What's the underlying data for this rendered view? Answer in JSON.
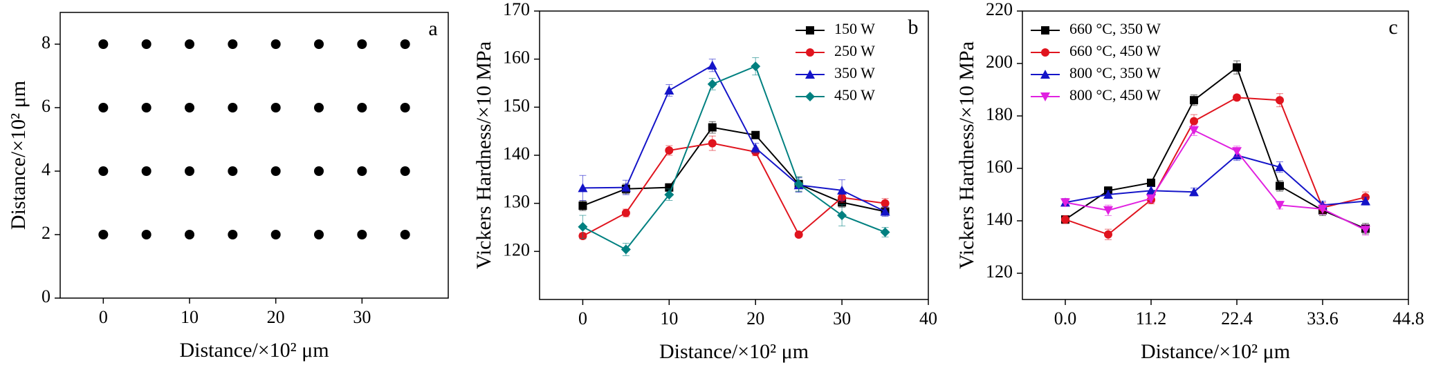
{
  "chart_data": [
    {
      "type": "scatter",
      "label": "a",
      "xlabel": "Distance/×10² μm",
      "ylabel": "Distance/×10² μm",
      "x": [
        0,
        5,
        10,
        15,
        20,
        25,
        30,
        35,
        0,
        5,
        10,
        15,
        20,
        25,
        30,
        35,
        0,
        5,
        10,
        15,
        20,
        25,
        30,
        35,
        0,
        5,
        10,
        15,
        20,
        25,
        30,
        35
      ],
      "y": [
        8,
        8,
        8,
        8,
        8,
        8,
        8,
        8,
        6,
        6,
        6,
        6,
        6,
        6,
        6,
        6,
        4,
        4,
        4,
        4,
        4,
        4,
        4,
        4,
        2,
        2,
        2,
        2,
        2,
        2,
        2,
        2
      ],
      "color": "#000000",
      "xlim": [
        -5,
        40
      ],
      "ylim": [
        0,
        9
      ],
      "xticks": [
        0,
        10,
        20,
        30
      ],
      "yticks": [
        0,
        2,
        4,
        6,
        8
      ]
    },
    {
      "type": "line",
      "label": "b",
      "xlabel": "Distance/×10² μm",
      "ylabel": "Vickers Hardness/×10 MPa",
      "x": [
        0,
        5,
        10,
        15,
        20,
        25,
        30,
        35
      ],
      "legend": "upper right",
      "series": [
        {
          "name": "150 W",
          "color": "#000000",
          "marker": "square",
          "values": [
            129.5,
            133,
            133.3,
            145.8,
            144.2,
            134,
            130.2,
            128.3
          ],
          "errors": [
            1,
            1,
            0.8,
            1.2,
            0.6,
            1.5,
            1,
            0.8
          ]
        },
        {
          "name": "250 W",
          "color": "#e0141e",
          "marker": "circle",
          "values": [
            123.2,
            128,
            141,
            142.5,
            140.7,
            123.5,
            131.2,
            130
          ],
          "errors": [
            0.6,
            0.8,
            1,
            1.5,
            0.8,
            0.5,
            1,
            1
          ]
        },
        {
          "name": "350 W",
          "color": "#1414c8",
          "marker": "triangle",
          "values": [
            133.2,
            133.3,
            153.5,
            158.7,
            141.5,
            133.8,
            132.7,
            128.3
          ],
          "errors": [
            2.6,
            1.5,
            1.2,
            1.3,
            1,
            1.5,
            2.2,
            1
          ]
        },
        {
          "name": "450 W",
          "color": "#008080",
          "marker": "diamond",
          "values": [
            125.1,
            120.4,
            131.8,
            154.8,
            158.5,
            134,
            127.5,
            124
          ],
          "errors": [
            2.4,
            1.3,
            1.2,
            1.2,
            1.8,
            1.5,
            2.2,
            1
          ]
        }
      ],
      "xlim": [
        -5,
        40
      ],
      "ylim": [
        110,
        170
      ],
      "xticks": [
        0,
        10,
        20,
        30,
        40
      ],
      "yticks": [
        120,
        130,
        140,
        150,
        160,
        170
      ]
    },
    {
      "type": "line",
      "label": "c",
      "xlabel": "Distance/×10² μm",
      "ylabel": "Vickers Hardness/×10 MPa",
      "x": [
        0,
        5.6,
        11.2,
        16.8,
        22.4,
        28,
        33.6,
        39.2
      ],
      "legend": "upper left",
      "series": [
        {
          "name": "660 °C, 350 W",
          "color": "#000000",
          "marker": "square",
          "values": [
            140.5,
            151.5,
            154.5,
            186,
            198.5,
            153.3,
            144,
            137
          ],
          "errors": [
            1.5,
            1.5,
            1.2,
            2,
            2.5,
            2,
            2,
            2
          ]
        },
        {
          "name": "660 °C, 450 W",
          "color": "#e0141e",
          "marker": "circle",
          "values": [
            140.5,
            134.8,
            148,
            178,
            187,
            186,
            145,
            149
          ],
          "errors": [
            1.5,
            2,
            1.5,
            2.5,
            1,
            2.5,
            2,
            2
          ]
        },
        {
          "name": "800 °C, 350 W",
          "color": "#1414c8",
          "marker": "triangle",
          "values": [
            147,
            150,
            151.5,
            151,
            165,
            160.5,
            146,
            147.5
          ],
          "errors": [
            1.5,
            1.5,
            1.5,
            1.5,
            2,
            2,
            1.5,
            1.5
          ]
        },
        {
          "name": "800 °C, 450 W",
          "color": "#e020e0",
          "marker": "tridown",
          "values": [
            147,
            144,
            148.5,
            174.5,
            166.5,
            146,
            144.5,
            136.5
          ],
          "errors": [
            1.5,
            2,
            1.5,
            2,
            2,
            1.5,
            2,
            2
          ]
        }
      ],
      "xlim": [
        -5.6,
        44.8
      ],
      "ylim": [
        110,
        220
      ],
      "xticks": [
        {
          "value": 0,
          "label": "0.0"
        },
        11.2,
        22.4,
        33.6,
        44.8
      ],
      "yticks": [
        120,
        140,
        160,
        180,
        200,
        220
      ]
    }
  ]
}
